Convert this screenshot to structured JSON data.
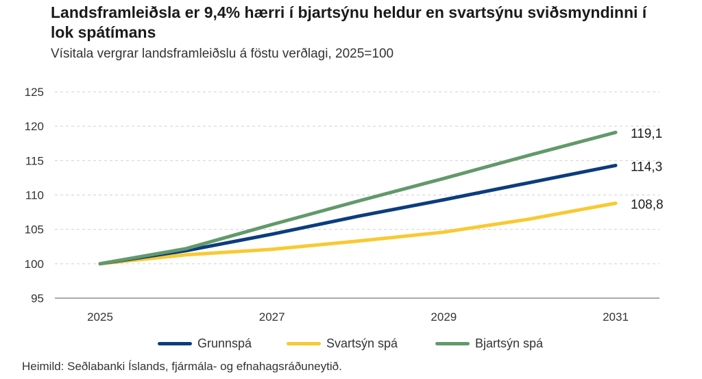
{
  "chart_data": {
    "type": "line",
    "title": "Landsframleiðsla er 9,4% hærri í bjartsýnu heldur en svartsýnu sviðsmyndinni í lok spátímans",
    "subtitle": "Vísitala vergrar landsframleiðslu á föstu verðlagi, 2025=100",
    "source": "Heimild: Seðlabanki Íslands, fjármála- og efnahagsráðuneytið.",
    "x": [
      2025,
      2026,
      2027,
      2028,
      2029,
      2030,
      2031
    ],
    "x_tick_labels": [
      "2025",
      "2027",
      "2029",
      "2031"
    ],
    "x_tick_values": [
      2025,
      2027,
      2029,
      2031
    ],
    "ylim": [
      95,
      125
    ],
    "y_ticks": [
      95,
      100,
      105,
      110,
      115,
      120,
      125
    ],
    "grid": true,
    "legend_placement": "bottom",
    "series": [
      {
        "name": "Grunnspá",
        "color": "#0b3d7e",
        "values": [
          100,
          101.9,
          104.3,
          106.9,
          109.3,
          111.8,
          114.3
        ],
        "end_label": "114,3"
      },
      {
        "name": "Svartsýn spá",
        "color": "#f9c931",
        "values": [
          100,
          101.3,
          102.1,
          103.3,
          104.6,
          106.5,
          108.8
        ],
        "end_label": "108,8"
      },
      {
        "name": "Bjartsýn spá",
        "color": "#62996a",
        "values": [
          100,
          102.2,
          105.7,
          109.1,
          112.4,
          115.8,
          119.1
        ],
        "end_label": "119,1"
      }
    ]
  }
}
